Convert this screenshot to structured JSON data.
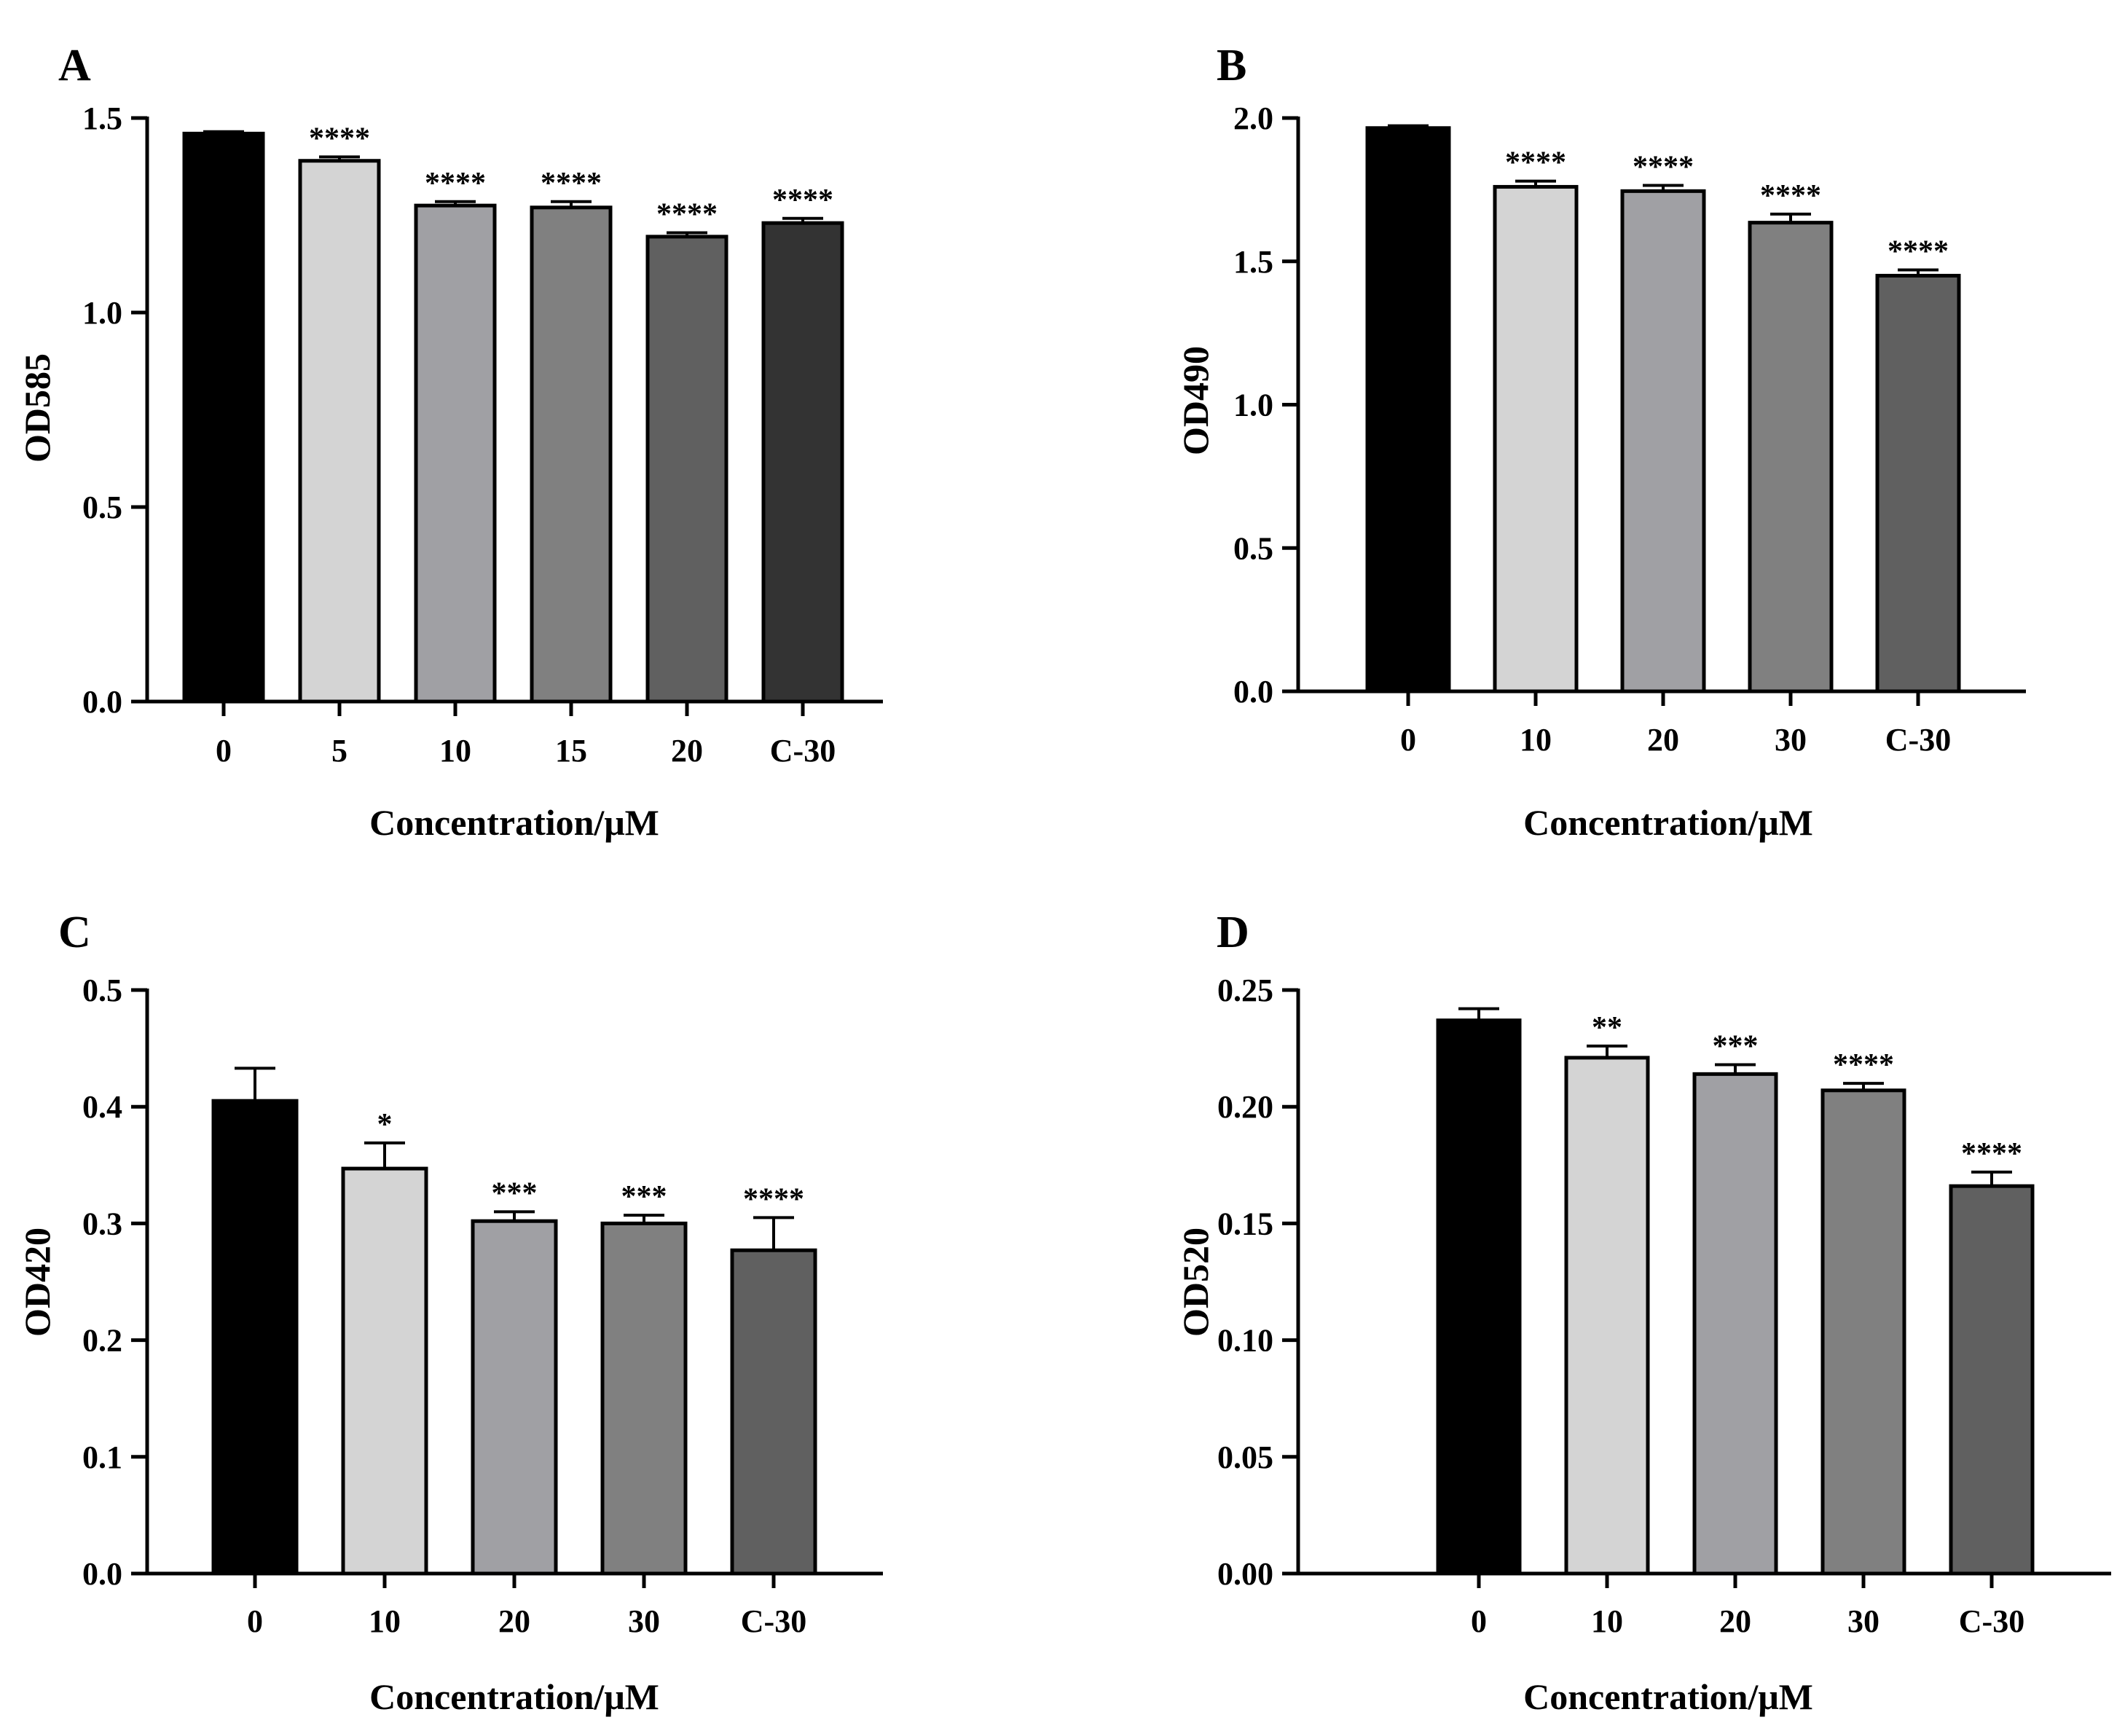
{
  "chart_data": [
    {
      "panel": "A",
      "type": "bar",
      "ylabel": "OD585",
      "xlabel": "Concentration/μM",
      "ylim": [
        0,
        1.5
      ],
      "yticks": [
        "0.0",
        "0.5",
        "1.0",
        "1.5"
      ],
      "ytick_values": [
        0,
        0.5,
        1.0,
        1.5
      ],
      "categories": [
        "0",
        "5",
        "10",
        "15",
        "20",
        "C-30"
      ],
      "values": [
        1.46,
        1.39,
        1.275,
        1.27,
        1.195,
        1.23
      ],
      "errors": [
        0.005,
        0.01,
        0.01,
        0.015,
        0.01,
        0.012
      ],
      "significance": [
        "",
        "****",
        "****",
        "****",
        "****",
        "****"
      ],
      "colors": [
        "#000000",
        "#d4d4d4",
        "#a0a0a4",
        "#808080",
        "#606060",
        "#333333"
      ]
    },
    {
      "panel": "B",
      "type": "bar",
      "ylabel": "OD490",
      "xlabel": "Concentration/μM",
      "ylim": [
        0,
        2.0
      ],
      "yticks": [
        "0.0",
        "0.5",
        "1.0",
        "1.5",
        "2.0"
      ],
      "ytick_values": [
        0,
        0.5,
        1.0,
        1.5,
        2.0
      ],
      "categories": [
        "0",
        "10",
        "20",
        "30",
        "C-30"
      ],
      "values": [
        1.965,
        1.76,
        1.745,
        1.635,
        1.45
      ],
      "errors": [
        0.008,
        0.02,
        0.02,
        0.03,
        0.02
      ],
      "significance": [
        "",
        "****",
        "****",
        "****",
        "****"
      ],
      "colors": [
        "#000000",
        "#d4d4d4",
        "#a0a0a4",
        "#808080",
        "#606060"
      ]
    },
    {
      "panel": "C",
      "type": "bar",
      "ylabel": "OD420",
      "xlabel": "Concentration/μM",
      "ylim": [
        0,
        0.5
      ],
      "yticks": [
        "0.0",
        "0.1",
        "0.2",
        "0.3",
        "0.4",
        "0.5"
      ],
      "ytick_values": [
        0,
        0.1,
        0.2,
        0.3,
        0.4,
        0.5
      ],
      "categories": [
        "0",
        "10",
        "20",
        "30",
        "C-30"
      ],
      "values": [
        0.405,
        0.347,
        0.302,
        0.3,
        0.277
      ],
      "errors": [
        0.028,
        0.022,
        0.008,
        0.007,
        0.028
      ],
      "significance": [
        "",
        "*",
        "***",
        "***",
        "****"
      ],
      "colors": [
        "#000000",
        "#d4d4d4",
        "#a0a0a4",
        "#808080",
        "#606060"
      ]
    },
    {
      "panel": "D",
      "type": "bar",
      "ylabel": "OD520",
      "xlabel": "Concentration/μM",
      "ylim": [
        0,
        0.25
      ],
      "yticks": [
        "0.00",
        "0.05",
        "0.10",
        "0.15",
        "0.20",
        "0.25"
      ],
      "ytick_values": [
        0,
        0.05,
        0.1,
        0.15,
        0.2,
        0.25
      ],
      "categories": [
        "0",
        "10",
        "20",
        "30",
        "C-30"
      ],
      "values": [
        0.237,
        0.221,
        0.214,
        0.207,
        0.166
      ],
      "errors": [
        0.005,
        0.005,
        0.004,
        0.003,
        0.006
      ],
      "significance": [
        "",
        "**",
        "***",
        "****",
        "****"
      ],
      "colors": [
        "#000000",
        "#d4d4d4",
        "#a0a0a4",
        "#808080",
        "#606060"
      ]
    }
  ]
}
